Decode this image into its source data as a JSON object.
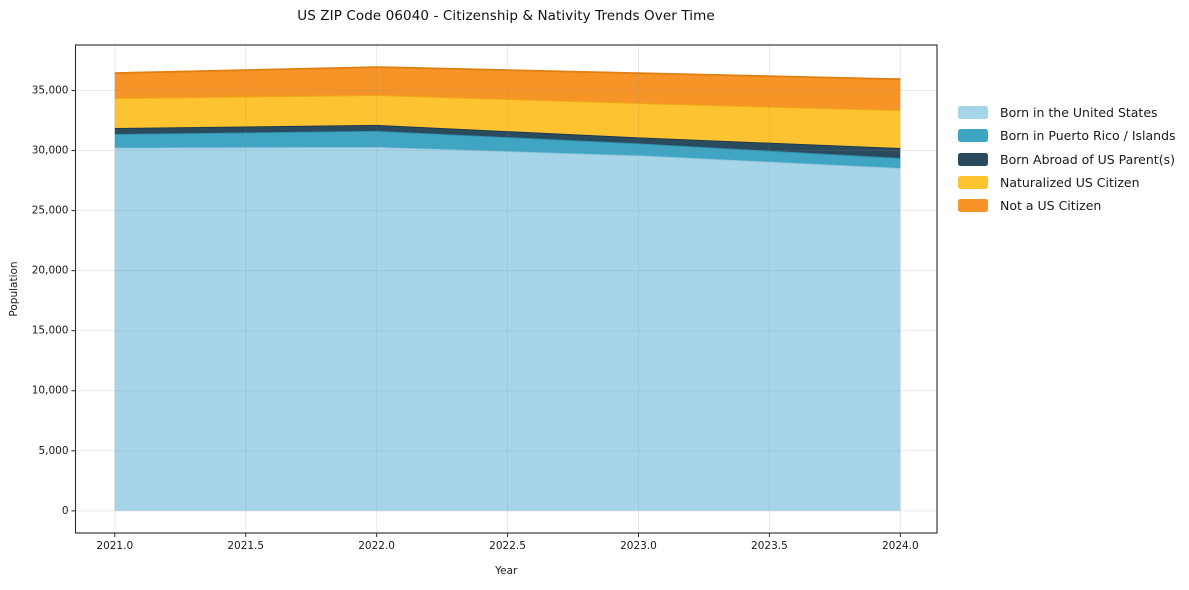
{
  "chart_data": {
    "type": "area",
    "stacked": true,
    "title": "US ZIP Code 06040 - Citizenship & Nativity Trends Over Time",
    "xlabel": "Year",
    "ylabel": "Population",
    "x": [
      2021,
      2022,
      2023,
      2024
    ],
    "series": [
      {
        "name": "Born in the United States",
        "color": "#A6D4E8",
        "edge": "#8FC3DC",
        "values": [
          30250,
          30300,
          29600,
          28550
        ]
      },
      {
        "name": "Born in Puerto Rico / Islands",
        "color": "#3FA5C2",
        "edge": "#2E8FAC",
        "values": [
          1130,
          1340,
          1000,
          830
        ]
      },
      {
        "name": "Born Abroad of US Parent(s)",
        "color": "#2A4B5E",
        "edge": "#1E3848",
        "values": [
          500,
          500,
          500,
          830
        ]
      },
      {
        "name": "Naturalized US Citizen",
        "color": "#FDC330",
        "edge": "#ECAB12",
        "values": [
          2490,
          2480,
          2850,
          3150
        ]
      },
      {
        "name": "Not a US Citizen",
        "color": "#F79428",
        "edge": "#E07F12",
        "values": [
          2080,
          2330,
          2490,
          2580
        ]
      }
    ],
    "xlim": [
      2020.85,
      2024.14
    ],
    "ylim": [
      -1845,
      38790
    ],
    "xticks": {
      "values": [
        2021.0,
        2021.5,
        2022.0,
        2022.5,
        2023.0,
        2023.5,
        2024.0
      ],
      "labels": [
        "2021.0",
        "2021.5",
        "2022.0",
        "2022.5",
        "2023.0",
        "2023.5",
        "2024.0"
      ]
    },
    "yticks": {
      "values": [
        0,
        5000,
        10000,
        15000,
        20000,
        25000,
        30000,
        35000
      ],
      "labels": [
        "0",
        "5,000",
        "10,000",
        "15,000",
        "20,000",
        "25,000",
        "30,000",
        "35,000"
      ]
    },
    "grid": true,
    "legend_position": "outside-upper-right",
    "colors": {
      "spine": "#2b2b2b",
      "tick_text": "#1a1a1a",
      "grid": "#888888",
      "background": "#ffffff"
    }
  }
}
